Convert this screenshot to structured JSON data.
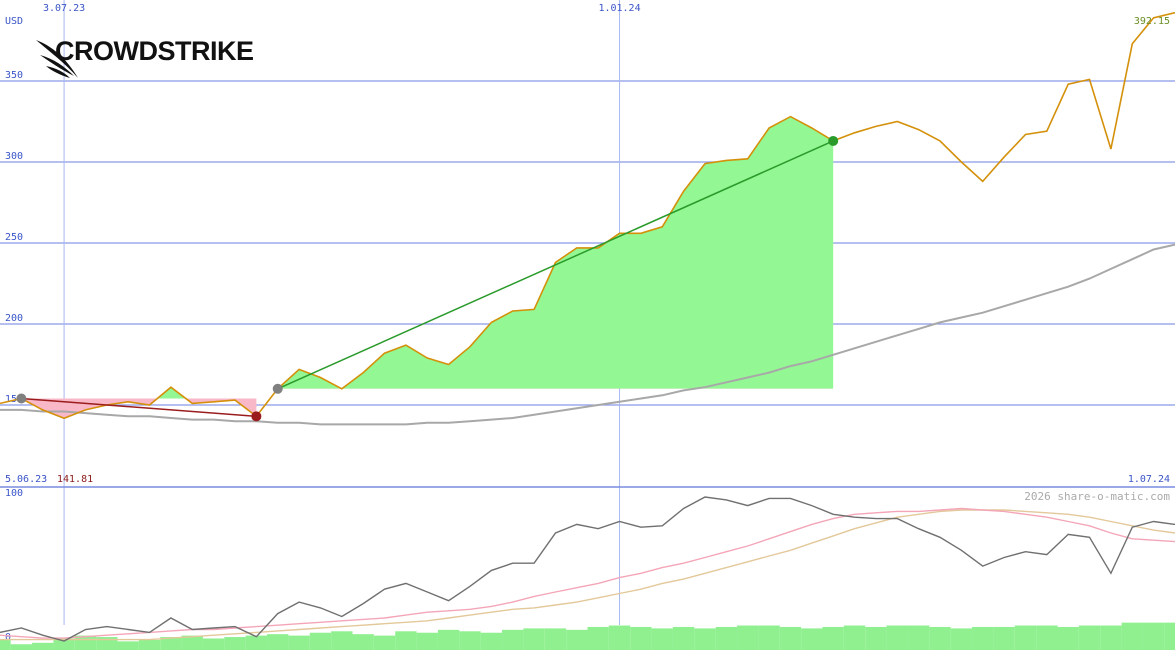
{
  "logo": "CROWDSTRIKE",
  "watermark": "2026 share-o-matic.com",
  "chart_data": [
    {
      "type": "line",
      "y_unit": "USD",
      "x_range_labels": [
        "5.06.23",
        "1.07.24"
      ],
      "categories": [
        null,
        null,
        null,
        "3.07.23",
        null,
        null,
        null,
        null,
        null,
        null,
        null,
        null,
        null,
        null,
        null,
        null,
        null,
        null,
        null,
        null,
        null,
        null,
        null,
        null,
        null,
        null,
        null,
        null,
        null,
        "1.01.24",
        null,
        null,
        null,
        null,
        null,
        null,
        null,
        null,
        null,
        null,
        null,
        null,
        null,
        null,
        null,
        null,
        null,
        null,
        null,
        null,
        null,
        null,
        null,
        null,
        null,
        null
      ],
      "series": [
        {
          "color": "#d4900a",
          "values": [
            151,
            154,
            147,
            141.81,
            147,
            150,
            152,
            150,
            161,
            151,
            152,
            153,
            143,
            160,
            172,
            167,
            160,
            170,
            182,
            187,
            179,
            175,
            186,
            201,
            208,
            209,
            238,
            247,
            247,
            256,
            256,
            260,
            282,
            299,
            301,
            302,
            321,
            328,
            321,
            313,
            318,
            322,
            325,
            320,
            313,
            300,
            288,
            303,
            317,
            319,
            348,
            351,
            308,
            373,
            389,
            392.15
          ]
        },
        {
          "color": "#a8a8a8",
          "values": [
            147,
            147,
            146,
            146,
            145,
            144,
            143,
            143,
            142,
            141,
            141,
            140,
            140,
            139,
            139,
            138,
            138,
            138,
            138,
            138,
            139,
            139,
            140,
            141,
            142,
            144,
            146,
            148,
            150,
            152,
            154,
            156,
            159,
            161,
            164,
            167,
            170,
            174,
            177,
            181,
            185,
            189,
            193,
            197,
            201,
            204,
            207,
            211,
            215,
            219,
            223,
            228,
            234,
            240,
            246,
            249
          ]
        }
      ],
      "ylim": [
        100,
        400
      ],
      "yticks": [
        150,
        200,
        250,
        300,
        350
      ],
      "grid": true
    },
    {
      "type": "line",
      "series": [
        {
          "color": "#707070",
          "values": [
            6,
            9,
            4,
            0,
            8,
            10,
            8,
            6,
            16,
            8,
            9,
            10,
            3,
            19,
            27,
            23,
            17,
            26,
            36,
            40,
            34,
            28,
            38,
            49,
            54,
            54,
            75,
            81,
            78,
            83,
            79,
            80,
            92,
            100,
            98,
            94,
            99,
            99,
            94,
            88,
            86,
            85,
            85,
            78,
            72,
            63,
            52,
            58,
            62,
            60,
            74,
            72,
            47,
            79,
            83,
            81
          ]
        },
        {
          "color": "#f4a6b8",
          "values": [
            4,
            3,
            2,
            2,
            3,
            4,
            5,
            6,
            7,
            8,
            8,
            9,
            10,
            11,
            12,
            13,
            14,
            15,
            16,
            18,
            20,
            21,
            22,
            24,
            27,
            31,
            34,
            37,
            40,
            44,
            47,
            51,
            54,
            58,
            62,
            66,
            71,
            76,
            81,
            85,
            88,
            89,
            90,
            90,
            91,
            92,
            91,
            90,
            88,
            86,
            83,
            80,
            75,
            71,
            70,
            69
          ]
        },
        {
          "color": "#e3c89a",
          "values": [
            1,
            1,
            1,
            1,
            1,
            1,
            1,
            1,
            2,
            3,
            4,
            5,
            6,
            7,
            8,
            9,
            10,
            11,
            12,
            13,
            14,
            16,
            18,
            20,
            22,
            23,
            25,
            27,
            30,
            33,
            36,
            40,
            43,
            47,
            51,
            55,
            59,
            63,
            68,
            73,
            78,
            82,
            86,
            88,
            90,
            91,
            91,
            91,
            90,
            89,
            88,
            86,
            83,
            80,
            77,
            75
          ]
        }
      ],
      "bars": {
        "color": "#90f090",
        "values": [
          7,
          4,
          5,
          8,
          10,
          9,
          6,
          7,
          9,
          10,
          8,
          9,
          10,
          11,
          10,
          12,
          13,
          11,
          10,
          13,
          12,
          14,
          13,
          12,
          14,
          15,
          15,
          14,
          16,
          17,
          16,
          15,
          16,
          15,
          16,
          17,
          17,
          16,
          15,
          16,
          17,
          16,
          17,
          17,
          16,
          15,
          16,
          16,
          17,
          17,
          16,
          17,
          17,
          19,
          19,
          19
        ]
      },
      "ylim": [
        0,
        100
      ],
      "yticks": [
        0,
        100
      ]
    }
  ]
}
